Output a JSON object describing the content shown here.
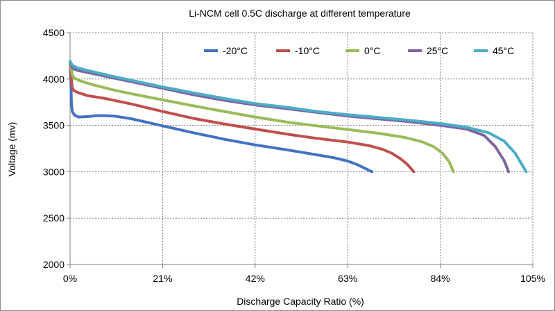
{
  "chart_data": {
    "type": "line",
    "title": "Li-NCM cell 0.5C discharge at different temperature",
    "xlabel": "Discharge  Capacity  Ratio (%)",
    "ylabel": "Voltage  (mv)",
    "xlim": [
      0,
      105
    ],
    "ylim": [
      2000,
      4500
    ],
    "x_ticks": [
      0,
      21,
      42,
      63,
      84,
      105
    ],
    "x_tick_labels": [
      "0%",
      "21%",
      "42%",
      "63%",
      "84%",
      "105%"
    ],
    "y_ticks": [
      2000,
      2500,
      3000,
      3500,
      4000,
      4500
    ],
    "y_tick_labels": [
      "2000",
      "2500",
      "3000",
      "3500",
      "4000",
      "4500"
    ],
    "grid": true,
    "legend_position": "top-right",
    "series": [
      {
        "name": "-20°C",
        "color": "#4472C4",
        "x": [
          0,
          0.2,
          0.3,
          0.5,
          1,
          2,
          4,
          6,
          8,
          10,
          14,
          21,
          28,
          35,
          42,
          50,
          55,
          60,
          63,
          65,
          67,
          68.5
        ],
        "y": [
          4190,
          3950,
          3750,
          3650,
          3610,
          3590,
          3595,
          3605,
          3605,
          3600,
          3570,
          3495,
          3420,
          3350,
          3290,
          3230,
          3190,
          3150,
          3115,
          3080,
          3035,
          3000
        ]
      },
      {
        "name": "-10°C",
        "color": "#C0504D",
        "x": [
          0,
          0.3,
          0.5,
          1,
          2,
          4,
          8,
          14,
          21,
          28,
          35,
          42,
          50,
          56,
          63,
          68,
          71,
          73,
          75,
          76.5,
          78
        ],
        "y": [
          4190,
          4000,
          3900,
          3870,
          3850,
          3820,
          3790,
          3730,
          3650,
          3575,
          3515,
          3460,
          3400,
          3360,
          3320,
          3280,
          3240,
          3200,
          3140,
          3080,
          3000
        ]
      },
      {
        "name": "0°C",
        "color": "#9BBB59",
        "x": [
          0,
          0.5,
          1,
          2,
          5,
          10,
          14,
          21,
          28,
          35,
          42,
          50,
          56,
          63,
          70,
          76,
          80,
          82.5,
          84.5,
          86,
          87
        ],
        "y": [
          4190,
          4040,
          4010,
          3985,
          3940,
          3880,
          3840,
          3775,
          3710,
          3650,
          3590,
          3530,
          3495,
          3455,
          3415,
          3370,
          3320,
          3270,
          3200,
          3110,
          3000
        ]
      },
      {
        "name": "25°C",
        "color": "#8064A2",
        "x": [
          0,
          0.5,
          1,
          2,
          5,
          10,
          14,
          21,
          28,
          35,
          42,
          50,
          56,
          63,
          70,
          77,
          84,
          90,
          94,
          96.5,
          98.5,
          99.5
        ],
        "y": [
          4190,
          4120,
          4105,
          4090,
          4060,
          4010,
          3970,
          3900,
          3830,
          3770,
          3720,
          3675,
          3640,
          3600,
          3570,
          3540,
          3500,
          3460,
          3390,
          3270,
          3120,
          3000
        ]
      },
      {
        "name": "45°C",
        "color": "#4BACC6",
        "x": [
          0,
          0.5,
          1,
          2,
          5,
          10,
          14,
          21,
          28,
          35,
          42,
          50,
          56,
          63,
          70,
          77,
          84,
          90,
          95,
          98.5,
          101,
          102.5,
          103.5
        ],
        "y": [
          4190,
          4150,
          4135,
          4115,
          4080,
          4025,
          3985,
          3915,
          3850,
          3790,
          3735,
          3690,
          3650,
          3615,
          3585,
          3555,
          3520,
          3480,
          3420,
          3330,
          3200,
          3080,
          3000
        ]
      }
    ]
  }
}
